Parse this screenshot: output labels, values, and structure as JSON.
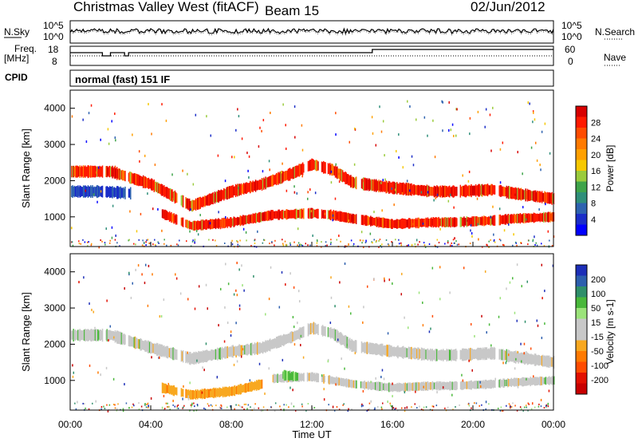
{
  "header": {
    "station": "Christmas Valley West (fitACF)",
    "beam": "Beam 15",
    "date": "02/Jun/2012"
  },
  "top_panels": {
    "nsky_label": "N.Sky",
    "nsky_ticks": [
      "10^5",
      "10^0"
    ],
    "nsky_right_ticks": [
      "10^5",
      "10^0"
    ],
    "nsearch_label": "N.Search",
    "freq_label_1": "Freq.",
    "freq_label_2": "[MHz]",
    "freq_ticks": [
      "18",
      "8"
    ],
    "nave_ticks": [
      "60",
      "0"
    ],
    "nave_label": "Nave",
    "cpid_label": "CPID",
    "cpid_value": "normal (fast) 151 IF"
  },
  "axes": {
    "ylabel": "Slant Range [km]",
    "yticks": [
      "4000",
      "3000",
      "2000",
      "1000"
    ],
    "xlabel": "Time UT",
    "xticks": [
      "00:00",
      "04:00",
      "08:00",
      "12:00",
      "16:00",
      "20:00",
      "00:00"
    ]
  },
  "power_colorbar": {
    "label": "Power [dB]",
    "ticks": [
      "28",
      "24",
      "20",
      "16",
      "12",
      "8",
      "4"
    ],
    "colors": [
      "#d80000",
      "#ff1a00",
      "#ff4c00",
      "#ff7a00",
      "#ffa000",
      "#f6c800",
      "#9acb3c",
      "#3fa44a",
      "#2f8f7a",
      "#2e63b0",
      "#1b2ec8",
      "#0000ff"
    ]
  },
  "velocity_colorbar": {
    "label": "Velocity [m s-1]",
    "ticks": [
      "200",
      "100",
      "50",
      "15",
      "-15",
      "-50",
      "-100",
      "-200"
    ],
    "colors": [
      "#1d2fb8",
      "#2d5fae",
      "#2f8f6a",
      "#49b83a",
      "#9be37a",
      "#c8c8c8",
      "#c8c8c8",
      "#f8a820",
      "#ff7a00",
      "#ff4c00",
      "#e21000",
      "#c80000"
    ]
  },
  "chart_data": [
    {
      "type": "heatmap",
      "title": "Power",
      "xlabel": "Time UT",
      "ylabel": "Slant Range [km]",
      "xlim": [
        0,
        24
      ],
      "ylim": [
        180,
        4500
      ],
      "colorbar_range": [
        0,
        30
      ],
      "bands": [
        {
          "t": [
            0,
            2,
            4,
            6,
            8,
            9.5,
            11,
            12,
            13,
            14,
            16,
            18,
            19,
            21,
            22,
            24
          ],
          "range": [
            2250,
            2250,
            1900,
            1300,
            1700,
            1900,
            2200,
            2450,
            2300,
            1950,
            1800,
            1700,
            1700,
            1750,
            1650,
            1500
          ],
          "width": 300,
          "power": 24
        },
        {
          "t": [
            4.5,
            6,
            8,
            10,
            12,
            13,
            14,
            16,
            18,
            19,
            21,
            22,
            24
          ],
          "range": [
            1100,
            750,
            850,
            1050,
            1100,
            1050,
            950,
            800,
            850,
            850,
            900,
            950,
            1000
          ],
          "width": 250,
          "power": 26
        },
        {
          "t": [
            0,
            1.5,
            3
          ],
          "range": [
            1700,
            1700,
            1650
          ],
          "width": 300,
          "power": 6
        }
      ],
      "gaps_hours": [
        [
          1.6,
          1.75
        ],
        [
          2.7,
          2.85
        ],
        [
          5.3,
          5.45
        ],
        [
          5.6,
          5.7
        ],
        [
          11.6,
          11.75
        ],
        [
          12.3,
          12.45
        ],
        [
          12.65,
          12.75
        ],
        [
          14.2,
          14.4
        ],
        [
          19.2,
          19.35
        ],
        [
          21.1,
          21.25
        ]
      ]
    },
    {
      "type": "heatmap",
      "title": "Velocity",
      "xlabel": "Time UT",
      "ylabel": "Slant Range [km]",
      "xlim": [
        0,
        24
      ],
      "ylim": [
        180,
        4500
      ],
      "colorbar_range": [
        -200,
        200
      ],
      "bands": [
        {
          "t": [
            0,
            2,
            4,
            6,
            8,
            9.5,
            11,
            12,
            13,
            14,
            16,
            18,
            19,
            21,
            22,
            24
          ],
          "range": [
            2250,
            2250,
            1900,
            1600,
            1800,
            1900,
            2200,
            2450,
            2300,
            1950,
            1800,
            1700,
            1700,
            1750,
            1650,
            1500
          ],
          "width": 300,
          "velocity": 0
        },
        {
          "t": [
            4.5,
            6,
            8,
            9.5
          ],
          "range": [
            800,
            600,
            700,
            900
          ],
          "width": 250,
          "velocity": -60
        },
        {
          "t": [
            10,
            12,
            14,
            16,
            18,
            19,
            21,
            22,
            24
          ],
          "range": [
            1050,
            1100,
            900,
            800,
            850,
            850,
            900,
            950,
            1000
          ],
          "width": 220,
          "velocity": 0
        },
        {
          "t": [
            10.5,
            11.3
          ],
          "range": [
            1150,
            1100
          ],
          "width": 250,
          "velocity": 60
        }
      ],
      "gaps_hours": [
        [
          1.6,
          1.75
        ],
        [
          2.7,
          2.85
        ],
        [
          5.3,
          5.45
        ],
        [
          5.6,
          5.7
        ],
        [
          11.6,
          11.75
        ],
        [
          12.3,
          12.45
        ],
        [
          12.65,
          12.75
        ],
        [
          14.2,
          14.4
        ],
        [
          19.2,
          19.35
        ],
        [
          21.1,
          21.25
        ]
      ]
    }
  ]
}
